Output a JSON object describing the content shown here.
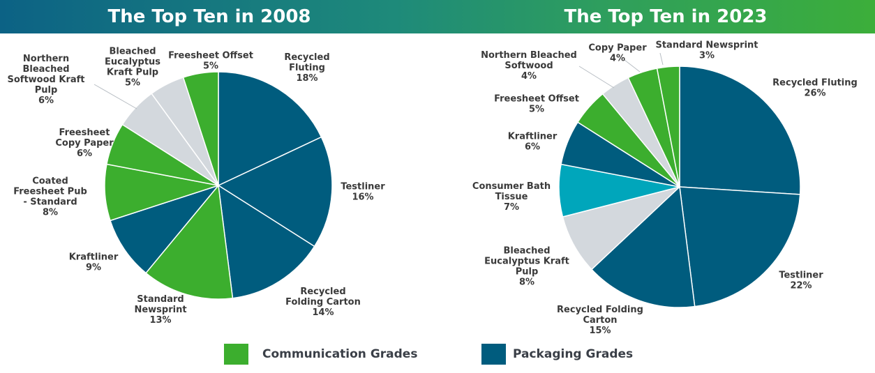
{
  "colors": {
    "communication": "#3cae2e",
    "packaging": "#005c7e",
    "tissue": "#00a6bb",
    "other": "#d3d8dd"
  },
  "legend": {
    "communication_label": "Communication Grades",
    "packaging_label": "Packaging Grades"
  },
  "chart_data": [
    {
      "type": "pie",
      "title": "The Top Ten in 2008",
      "slices": [
        {
          "label": [
            "Recycled",
            "Fluting"
          ],
          "value": 18,
          "pct": "18%",
          "category": "packaging"
        },
        {
          "label": [
            "Testliner"
          ],
          "value": 16,
          "pct": "16%",
          "category": "packaging"
        },
        {
          "label": [
            "Recycled",
            "Folding Carton"
          ],
          "value": 14,
          "pct": "14%",
          "category": "packaging"
        },
        {
          "label": [
            "Standard",
            "Newsprint"
          ],
          "value": 13,
          "pct": "13%",
          "category": "communication"
        },
        {
          "label": [
            "Kraftliner"
          ],
          "value": 9,
          "pct": "9%",
          "category": "packaging"
        },
        {
          "label": [
            "Coated",
            "Freesheet Pub",
            "- Standard"
          ],
          "value": 8,
          "pct": "8%",
          "category": "communication"
        },
        {
          "label": [
            "Freesheet",
            "Copy Paper"
          ],
          "value": 6,
          "pct": "6%",
          "category": "communication"
        },
        {
          "label": [
            "Northern",
            "Bleached",
            "Softwood Kraft",
            "Pulp"
          ],
          "value": 6,
          "pct": "6%",
          "category": "other"
        },
        {
          "label": [
            "Bleached",
            "Eucalyptus",
            "Kraft Pulp"
          ],
          "value": 5,
          "pct": "5%",
          "category": "other"
        },
        {
          "label": [
            "Freesheet Offset"
          ],
          "value": 5,
          "pct": "5%",
          "category": "communication"
        }
      ]
    },
    {
      "type": "pie",
      "title": "The Top Ten in 2023",
      "slices": [
        {
          "label": [
            "Recycled Fluting"
          ],
          "value": 26,
          "pct": "26%",
          "category": "packaging"
        },
        {
          "label": [
            "Testliner"
          ],
          "value": 22,
          "pct": "22%",
          "category": "packaging"
        },
        {
          "label": [
            "Recycled Folding",
            "Carton"
          ],
          "value": 15,
          "pct": "15%",
          "category": "packaging"
        },
        {
          "label": [
            "Bleached",
            "Eucalyptus Kraft",
            "Pulp"
          ],
          "value": 8,
          "pct": "8%",
          "category": "other"
        },
        {
          "label": [
            "Consumer Bath",
            "Tissue"
          ],
          "value": 7,
          "pct": "7%",
          "category": "tissue"
        },
        {
          "label": [
            "Kraftliner"
          ],
          "value": 6,
          "pct": "6%",
          "category": "packaging"
        },
        {
          "label": [
            "Freesheet Offset"
          ],
          "value": 5,
          "pct": "5%",
          "category": "communication"
        },
        {
          "label": [
            "Northern Bleached",
            "Softwood"
          ],
          "value": 4,
          "pct": "4%",
          "category": "other"
        },
        {
          "label": [
            "Copy Paper"
          ],
          "value": 4,
          "pct": "4%",
          "category": "communication"
        },
        {
          "label": [
            "Standard Newsprint"
          ],
          "value": 3,
          "pct": "3%",
          "category": "communication"
        }
      ]
    }
  ]
}
